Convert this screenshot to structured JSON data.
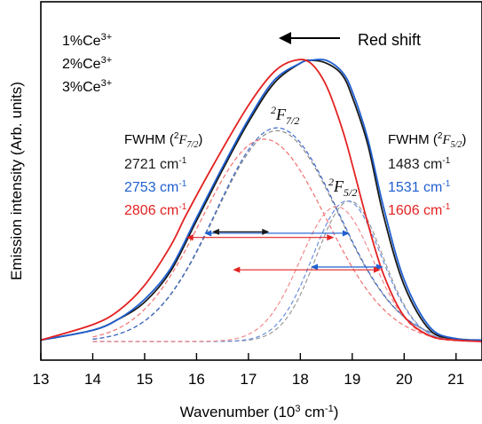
{
  "chart_data": {
    "type": "line",
    "xlabel": "Wavenumber (10",
    "xlabel_sup": "3",
    "xlabel_unit": " cm",
    "xlabel_unit_sup": "-1",
    "xlabel_close": ")",
    "ylabel": "Emission intensity (Arb. units)",
    "xlim": [
      13,
      21.5
    ],
    "ylim": [
      0,
      1.0
    ],
    "xticks": [
      "13",
      "14",
      "15",
      "16",
      "17",
      "18",
      "19",
      "20",
      "21"
    ],
    "legend": {
      "placement": "top-left",
      "entries": [
        {
          "name": "1%Ce",
          "sup": "3+",
          "color": "#1a1a1a"
        },
        {
          "name": "2%Ce",
          "sup": "3+",
          "color": "#1f5fd1"
        },
        {
          "name": "3%Ce",
          "sup": "3+",
          "color": "#e32222"
        }
      ]
    },
    "annotations": {
      "redshift": "Red shift",
      "peak1": {
        "pre": "2",
        "main": "F",
        "sub": "7/2"
      },
      "peak2": {
        "pre": "2",
        "main": "F",
        "sub": "5/2"
      },
      "fwhm_left": {
        "title_pre": "FWHM (",
        "title_sup": "2",
        "title_main": "F",
        "title_sub": "7/2",
        "title_post": ")",
        "values": [
          {
            "text": "2721 cm",
            "sup": "-1",
            "color": "#1a1a1a"
          },
          {
            "text": "2753 cm",
            "sup": "-1",
            "color": "#1f5fd1"
          },
          {
            "text": "2806 cm",
            "sup": "-1",
            "color": "#e32222"
          }
        ]
      },
      "fwhm_right": {
        "title_pre": "FWHM (",
        "title_sup": "2",
        "title_main": "F",
        "title_sub": "5/2",
        "title_post": ")",
        "values": [
          {
            "text": "1483 cm",
            "sup": "-1",
            "color": "#1a1a1a"
          },
          {
            "text": "1531 cm",
            "sup": "-1",
            "color": "#1f5fd1"
          },
          {
            "text": "1606 cm",
            "sup": "-1",
            "color": "#e32222"
          }
        ]
      }
    },
    "series": [
      {
        "name": "1%Ce3+",
        "color": "#1a1a1a",
        "x": [
          13.0,
          14.0,
          14.5,
          15.0,
          15.5,
          16.0,
          16.5,
          17.0,
          17.5,
          18.0,
          18.2,
          18.5,
          18.8,
          19.0,
          19.3,
          19.6,
          20.0,
          20.5,
          21.0,
          21.5
        ],
        "y": [
          0.005,
          0.04,
          0.08,
          0.14,
          0.25,
          0.43,
          0.61,
          0.78,
          0.92,
          0.99,
          1.0,
          0.99,
          0.95,
          0.87,
          0.7,
          0.45,
          0.2,
          0.04,
          0.01,
          0.005
        ]
      },
      {
        "name": "2%Ce3+",
        "color": "#1f5fd1",
        "x": [
          13.0,
          14.0,
          14.5,
          15.0,
          15.5,
          16.0,
          16.5,
          17.0,
          17.5,
          18.0,
          18.2,
          18.5,
          18.8,
          19.0,
          19.3,
          19.6,
          20.0,
          20.5,
          21.0,
          21.5
        ],
        "y": [
          0.005,
          0.04,
          0.08,
          0.15,
          0.26,
          0.44,
          0.62,
          0.79,
          0.93,
          0.99,
          1.0,
          1.0,
          0.96,
          0.89,
          0.72,
          0.48,
          0.22,
          0.05,
          0.01,
          0.005
        ]
      },
      {
        "name": "3%Ce3+",
        "color": "#e32222",
        "x": [
          13.0,
          14.0,
          14.5,
          15.0,
          15.5,
          15.8,
          16.3,
          17.0,
          17.5,
          17.9,
          18.2,
          18.5,
          18.8,
          19.0,
          19.3,
          19.6,
          20.0,
          20.5,
          21.0,
          21.5
        ],
        "y": [
          0.005,
          0.06,
          0.11,
          0.2,
          0.34,
          0.45,
          0.62,
          0.84,
          0.96,
          1.0,
          0.99,
          0.91,
          0.76,
          0.63,
          0.42,
          0.24,
          0.09,
          0.02,
          0.005,
          0.0
        ]
      }
    ],
    "fits": [
      {
        "name": "1%Ce3+ 2F7/2",
        "color": "#8a8a8a",
        "center": 17.55,
        "amp": 0.75,
        "sigma": 1.18
      },
      {
        "name": "2%Ce3+ 2F7/2",
        "color": "#3a68c8",
        "center": 17.55,
        "amp": 0.76,
        "sigma": 1.18
      },
      {
        "name": "3%Ce3+ 2F7/2",
        "color": "#f07070",
        "center": 17.3,
        "amp": 0.72,
        "sigma": 1.2
      },
      {
        "name": "1%Ce3+ 2F5/2",
        "color": "#9a9a9a",
        "center": 18.95,
        "amp": 0.5,
        "sigma": 0.64
      },
      {
        "name": "2%Ce3+ 2F5/2",
        "color": "#6a8ee0",
        "center": 18.9,
        "amp": 0.5,
        "sigma": 0.66
      },
      {
        "name": "3%Ce3+ 2F5/2",
        "color": "#f28a8a",
        "center": 18.7,
        "amp": 0.48,
        "sigma": 0.7
      }
    ],
    "arrows": [
      {
        "color": "#1f5fd1",
        "x1": 16.15,
        "x2": 18.95,
        "y": 0.385
      },
      {
        "color": "#e32222",
        "x1": 15.8,
        "x2": 18.65,
        "y": 0.37
      },
      {
        "color": "#1f5fd1",
        "x1": 18.2,
        "x2": 19.6,
        "y": 0.265
      },
      {
        "color": "#e32222",
        "x1": 16.7,
        "x2": 19.55,
        "y": 0.255
      },
      {
        "color": "#1a1a1a",
        "x1": 16.3,
        "x2": 17.4,
        "y": 0.39
      }
    ]
  }
}
